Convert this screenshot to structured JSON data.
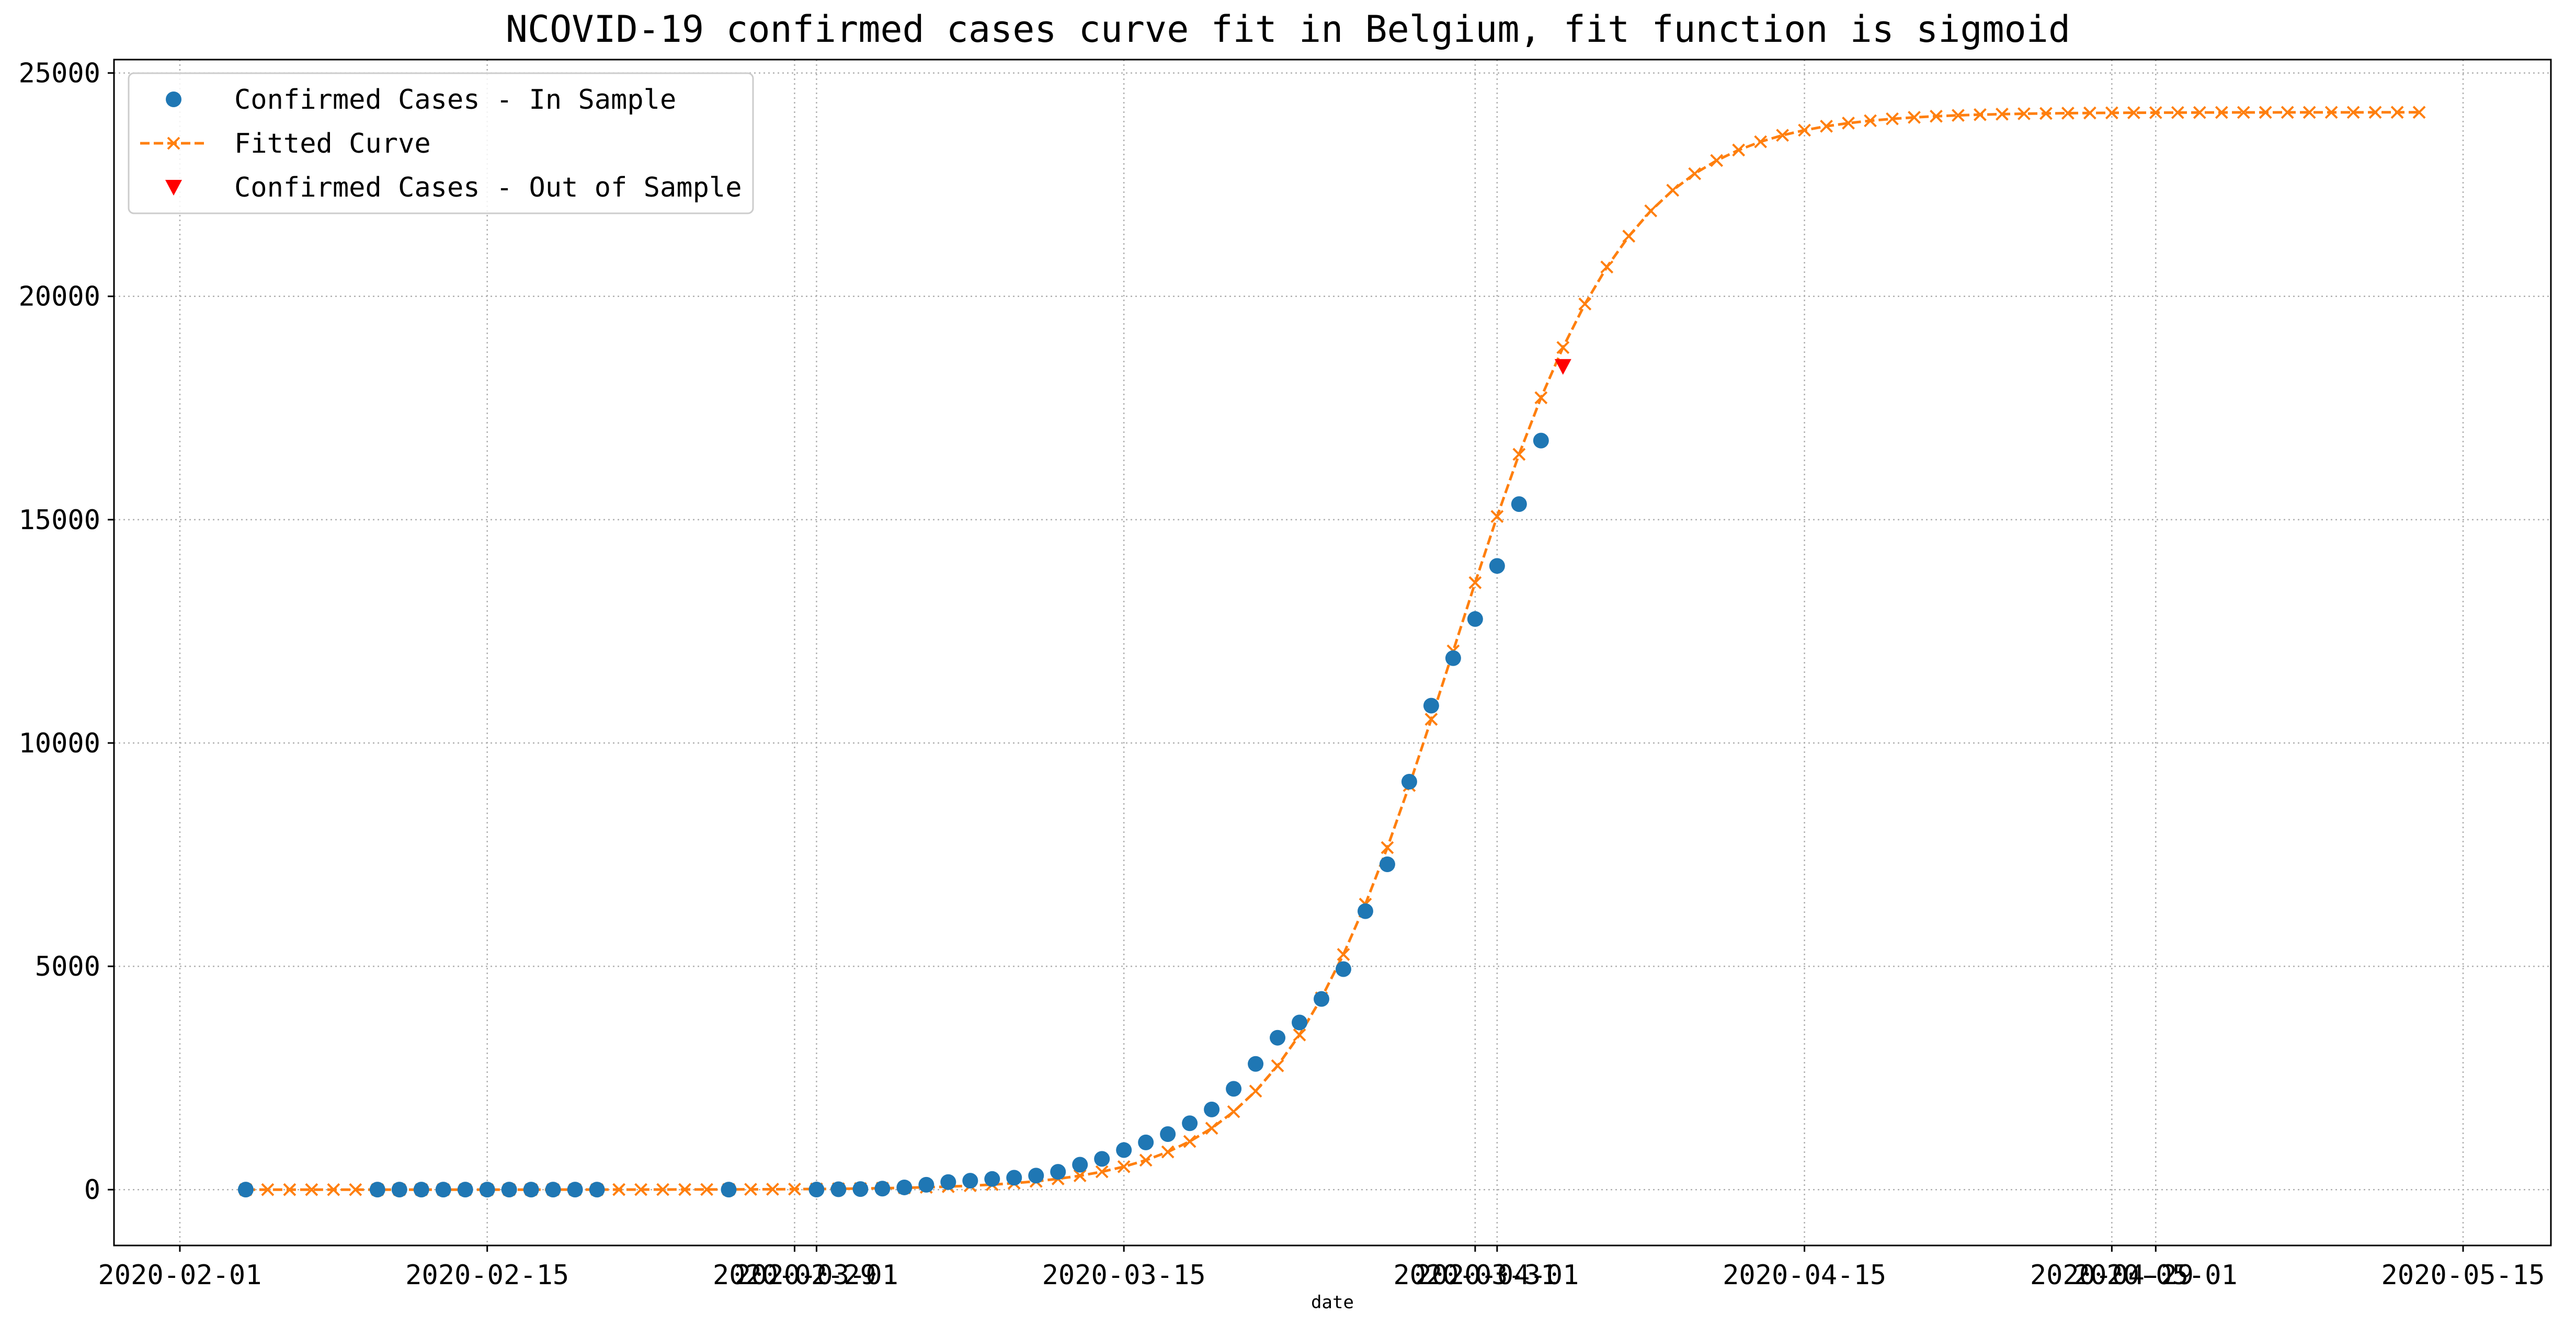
{
  "chart_data": {
    "type": "line",
    "title": "NCOVID-19 confirmed cases curve fit in Belgium, fit function is sigmoid",
    "xlabel": "date",
    "ylabel": "",
    "xlim": [
      "2020-01-29",
      "2020-05-19"
    ],
    "ylim": [
      -1250,
      25300
    ],
    "grid": true,
    "legend_position": "top-left",
    "x_ticks": [
      "2020-02-01",
      "2020-02-15",
      "2020-02-29",
      "2020-03-01",
      "2020-03-15",
      "2020-03-31",
      "2020-04-01",
      "2020-04-15",
      "2020-04-29",
      "2020-05-01",
      "2020-05-15"
    ],
    "y_ticks": [
      0,
      5000,
      10000,
      15000,
      20000,
      25000
    ],
    "series": [
      {
        "name": "Confirmed Cases - In Sample",
        "kind": "scatter",
        "marker": "circle",
        "color": "#1f77b4",
        "points": [
          [
            "2020-02-04",
            1
          ],
          [
            "2020-02-10",
            1
          ],
          [
            "2020-02-11",
            1
          ],
          [
            "2020-02-12",
            1
          ],
          [
            "2020-02-13",
            1
          ],
          [
            "2020-02-14",
            1
          ],
          [
            "2020-02-15",
            1
          ],
          [
            "2020-02-16",
            1
          ],
          [
            "2020-02-17",
            1
          ],
          [
            "2020-02-18",
            1
          ],
          [
            "2020-02-19",
            1
          ],
          [
            "2020-02-20",
            1
          ],
          [
            "2020-02-26",
            1
          ],
          [
            "2020-03-01",
            2
          ],
          [
            "2020-03-02",
            8
          ],
          [
            "2020-03-03",
            13
          ],
          [
            "2020-03-04",
            23
          ],
          [
            "2020-03-05",
            50
          ],
          [
            "2020-03-06",
            109
          ],
          [
            "2020-03-07",
            169
          ],
          [
            "2020-03-08",
            200
          ],
          [
            "2020-03-09",
            239
          ],
          [
            "2020-03-10",
            267
          ],
          [
            "2020-03-11",
            314
          ],
          [
            "2020-03-12",
            399
          ],
          [
            "2020-03-13",
            559
          ],
          [
            "2020-03-14",
            689
          ],
          [
            "2020-03-15",
            886
          ],
          [
            "2020-03-16",
            1058
          ],
          [
            "2020-03-17",
            1243
          ],
          [
            "2020-03-18",
            1486
          ],
          [
            "2020-03-19",
            1795
          ],
          [
            "2020-03-20",
            2257
          ],
          [
            "2020-03-21",
            2815
          ],
          [
            "2020-03-22",
            3401
          ],
          [
            "2020-03-23",
            3743
          ],
          [
            "2020-03-24",
            4269
          ],
          [
            "2020-03-25",
            4937
          ],
          [
            "2020-03-26",
            6235
          ],
          [
            "2020-03-27",
            7284
          ],
          [
            "2020-03-28",
            9134
          ],
          [
            "2020-03-29",
            10836
          ],
          [
            "2020-03-30",
            11899
          ],
          [
            "2020-03-31",
            12775
          ],
          [
            "2020-04-01",
            13964
          ],
          [
            "2020-04-02",
            15348
          ],
          [
            "2020-04-03",
            16770
          ]
        ]
      },
      {
        "name": "Fitted Curve",
        "kind": "line",
        "marker": "x",
        "linestyle": "dashed",
        "color": "#ff7f0e",
        "fit": {
          "model": "sigmoid",
          "max": 24120,
          "midpoint": "2020-03-30",
          "scale_days": 3.92
        },
        "x_range": [
          "2020-02-04",
          "2020-05-13"
        ]
      },
      {
        "name": "Confirmed Cases - Out of Sample",
        "kind": "scatter",
        "marker": "triangle-down",
        "color": "#ff0000",
        "points": [
          [
            "2020-04-04",
            18431
          ]
        ]
      }
    ]
  }
}
